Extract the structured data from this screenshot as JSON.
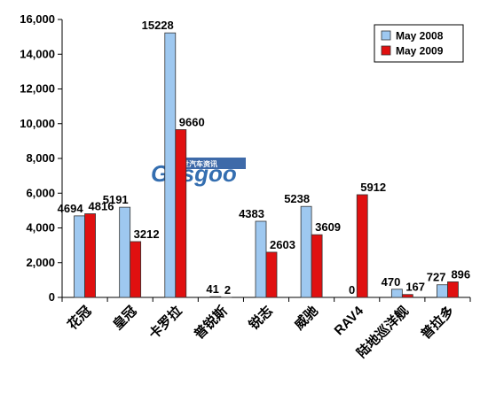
{
  "chart_data": {
    "type": "bar",
    "categories": [
      "花冠",
      "皇冠",
      "卡罗拉",
      "普锐斯",
      "锐志",
      "威驰",
      "RAV4",
      "陆地巡洋舰",
      "普拉多"
    ],
    "series": [
      {
        "name": "May 2008",
        "values": [
          4694,
          5191,
          15228,
          41,
          4383,
          5238,
          0,
          470,
          727
        ],
        "color": "#9ec8f0"
      },
      {
        "name": "May 2009",
        "values": [
          4816,
          3212,
          9660,
          2,
          2603,
          3609,
          5912,
          167,
          896
        ],
        "color": "#e01010"
      }
    ],
    "ylim": [
      0,
      16000
    ],
    "yticks": [
      0,
      2000,
      4000,
      6000,
      8000,
      10000,
      12000,
      14000,
      16000
    ],
    "ytick_labels": [
      "0",
      "2,000",
      "4,000",
      "6,000",
      "8,000",
      "10,000",
      "12,000",
      "14,000",
      "16,000"
    ],
    "grid": false,
    "legend_position": "top-right"
  },
  "watermark": {
    "cn": "盖世汽车资讯",
    "en": "Gasgoo"
  }
}
